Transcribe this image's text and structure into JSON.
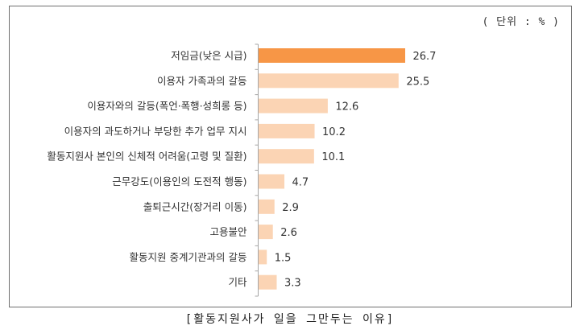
{
  "unit_label": "( 단위 : % )",
  "caption": "[활동지원사가 일을 그만두는 이유]",
  "colors": {
    "highlight": "#f79646",
    "bar": "#fbd4b4",
    "axis": "#a6a6a6"
  },
  "chart_data": {
    "type": "bar",
    "orientation": "horizontal",
    "title": "",
    "xlabel": "",
    "ylabel": "",
    "xlim": [
      0,
      30
    ],
    "grid": false,
    "categories": [
      "저임금(낮은 시급)",
      "이용자 가족과의 갈등",
      "이용자와의 갈등(폭언·폭행·성희롱 등)",
      "이용자의 과도하거나 부당한 추가 업무 지시",
      "활동지원사 본인의 신체적 어려움(고령 및 질환)",
      "근무강도(이용인의 도전적 행동)",
      "출퇴근시간(장거리 이동)",
      "고용불안",
      "활동지원 중계기관과의 갈등",
      "기타"
    ],
    "values": [
      26.7,
      25.5,
      12.6,
      10.2,
      10.1,
      4.7,
      2.9,
      2.6,
      1.5,
      3.3
    ],
    "value_labels": [
      "26.7",
      "25.5",
      "12.6",
      "10.2",
      "10.1",
      "4.7",
      "2.9",
      "2.6",
      "1.5",
      "3.3"
    ],
    "highlight_index": 0
  }
}
